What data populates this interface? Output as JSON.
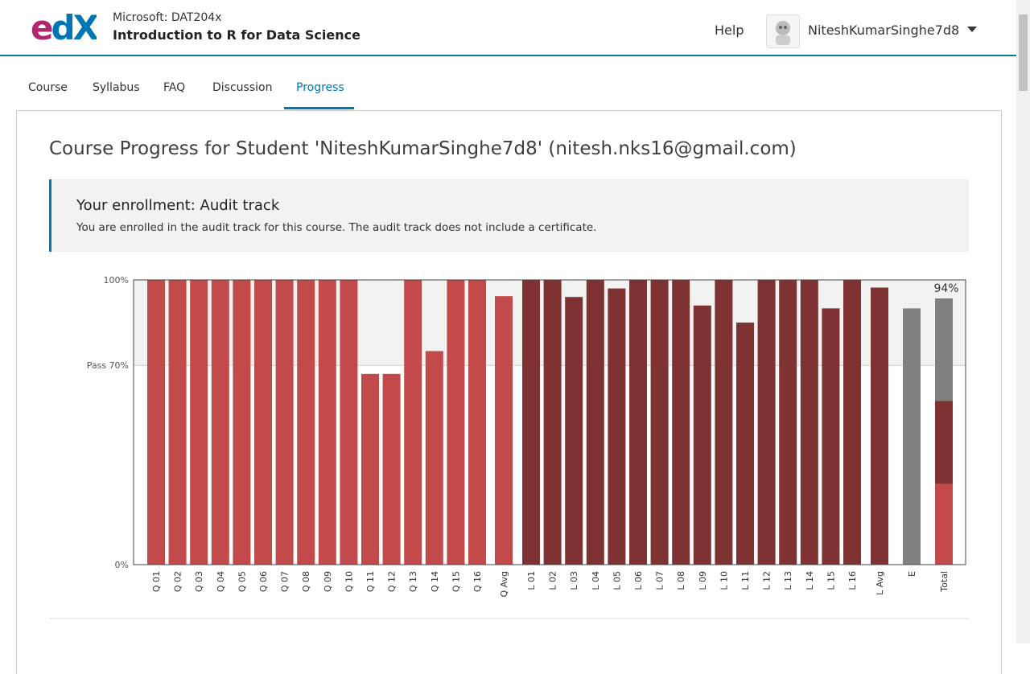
{
  "header": {
    "logo_parts": [
      "e",
      "dX"
    ],
    "course_org": "Microsoft: DAT204x",
    "course_title": "Introduction to R for Data Science",
    "help": "Help",
    "username": "NiteshKumarSinghe7d8"
  },
  "nav": {
    "tabs": [
      "Course",
      "Syllabus",
      "FAQ",
      "Discussion",
      "Progress"
    ],
    "active": 4
  },
  "heading": "Course Progress for Student 'NiteshKumarSinghe7d8' (nitesh.nks16@gmail.com)",
  "enrollment": {
    "title": "Your enrollment: Audit track",
    "text": "You are enrolled in the audit track for this course. The audit track does not include a certificate."
  },
  "chart_data": {
    "type": "bar",
    "categories": [
      "Q 01",
      "Q 02",
      "Q 03",
      "Q 04",
      "Q 05",
      "Q 06",
      "Q 07",
      "Q 08",
      "Q 09",
      "Q 10",
      "Q 11",
      "Q 12",
      "Q 13",
      "Q 14",
      "Q 15",
      "Q 16",
      "Q Avg",
      "L 01",
      "L 02",
      "L 03",
      "L 04",
      "L 05",
      "L 06",
      "L 07",
      "L 08",
      "L 09",
      "L 10",
      "L 11",
      "L 12",
      "L 13",
      "L 14",
      "L 15",
      "L 16",
      "L Avg",
      "E",
      "Total"
    ],
    "values": [
      100,
      100,
      100,
      100,
      100,
      100,
      100,
      100,
      100,
      100,
      67,
      67,
      100,
      75,
      100,
      100,
      94.3,
      100,
      100,
      94,
      100,
      97,
      100,
      100,
      100,
      91,
      100,
      85,
      100,
      100,
      100,
      90,
      100,
      97.3,
      90,
      null
    ],
    "colors": [
      "#c34a4a",
      "#c34a4a",
      "#c34a4a",
      "#c34a4a",
      "#c34a4a",
      "#c34a4a",
      "#c34a4a",
      "#c34a4a",
      "#c34a4a",
      "#c34a4a",
      "#c34a4a",
      "#c34a4a",
      "#c34a4a",
      "#c34a4a",
      "#c34a4a",
      "#c34a4a",
      "#c34a4a",
      "#7e3232",
      "#7e3232",
      "#7e3232",
      "#7e3232",
      "#7e3232",
      "#7e3232",
      "#7e3232",
      "#7e3232",
      "#7e3232",
      "#7e3232",
      "#7e3232",
      "#7e3232",
      "#7e3232",
      "#7e3232",
      "#7e3232",
      "#7e3232",
      "#7e3232",
      "#808080",
      null
    ],
    "total_segments": [
      {
        "value": 28.3,
        "color": "#c34a4a"
      },
      {
        "value": 29.2,
        "color": "#7e3232"
      },
      {
        "value": 36,
        "color": "#808080"
      }
    ],
    "total_label": {
      "value": 93.5,
      "label": "94%"
    },
    "ylim": [
      0,
      100
    ],
    "yticks": [
      {
        "value": 0,
        "label": "0%"
      },
      {
        "value": 70,
        "label": "Pass 70%"
      },
      {
        "value": 100,
        "label": "100%"
      }
    ]
  }
}
